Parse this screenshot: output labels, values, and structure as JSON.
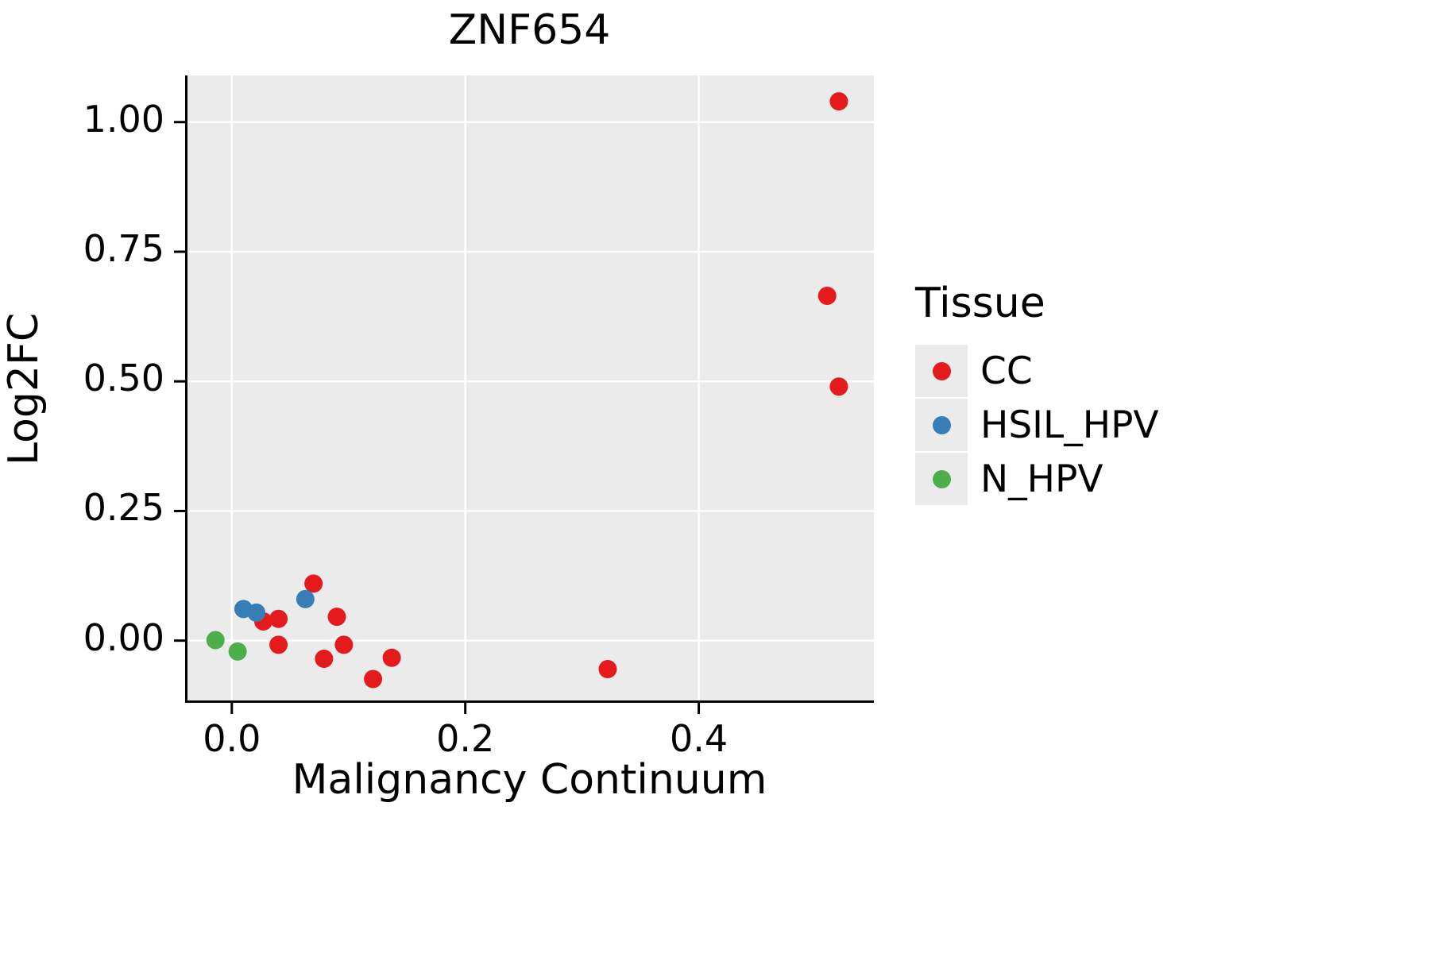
{
  "chart_data": {
    "type": "scatter",
    "title": "ZNF654",
    "xlabel": "Malignancy Continuum",
    "ylabel": "Log2FC",
    "xlim": [
      -0.04,
      0.55
    ],
    "ylim": [
      -0.12,
      1.09
    ],
    "xticks": [
      0.0,
      0.2,
      0.4
    ],
    "yticks": [
      0.0,
      0.25,
      0.5,
      0.75,
      1.0
    ],
    "xtick_labels": [
      "0.0",
      "0.2",
      "0.4"
    ],
    "ytick_labels": [
      "0.00",
      "0.25",
      "0.50",
      "0.75",
      "1.00"
    ],
    "grid": true,
    "panel_background": "#EBEBEB",
    "gridline_color": "#FFFFFF",
    "legend_title": "Tissue",
    "legend_position": "right",
    "series": [
      {
        "name": "CC",
        "color": "#E41A1C",
        "points": [
          [
            0.52,
            1.04
          ],
          [
            0.51,
            0.665
          ],
          [
            0.52,
            0.49
          ],
          [
            0.07,
            0.11
          ],
          [
            0.027,
            0.037
          ],
          [
            0.04,
            0.042
          ],
          [
            0.09,
            0.046
          ],
          [
            0.04,
            -0.008
          ],
          [
            0.096,
            -0.008
          ],
          [
            0.079,
            -0.035
          ],
          [
            0.137,
            -0.033
          ],
          [
            0.121,
            -0.074
          ],
          [
            0.322,
            -0.055
          ]
        ]
      },
      {
        "name": "HSIL_HPV",
        "color": "#377EB8",
        "points": [
          [
            0.01,
            0.061
          ],
          [
            0.021,
            0.054
          ],
          [
            0.063,
            0.08
          ]
        ]
      },
      {
        "name": "N_HPV",
        "color": "#4DAF4A",
        "points": [
          [
            -0.014,
            0.001
          ],
          [
            0.005,
            -0.021
          ]
        ]
      }
    ]
  }
}
